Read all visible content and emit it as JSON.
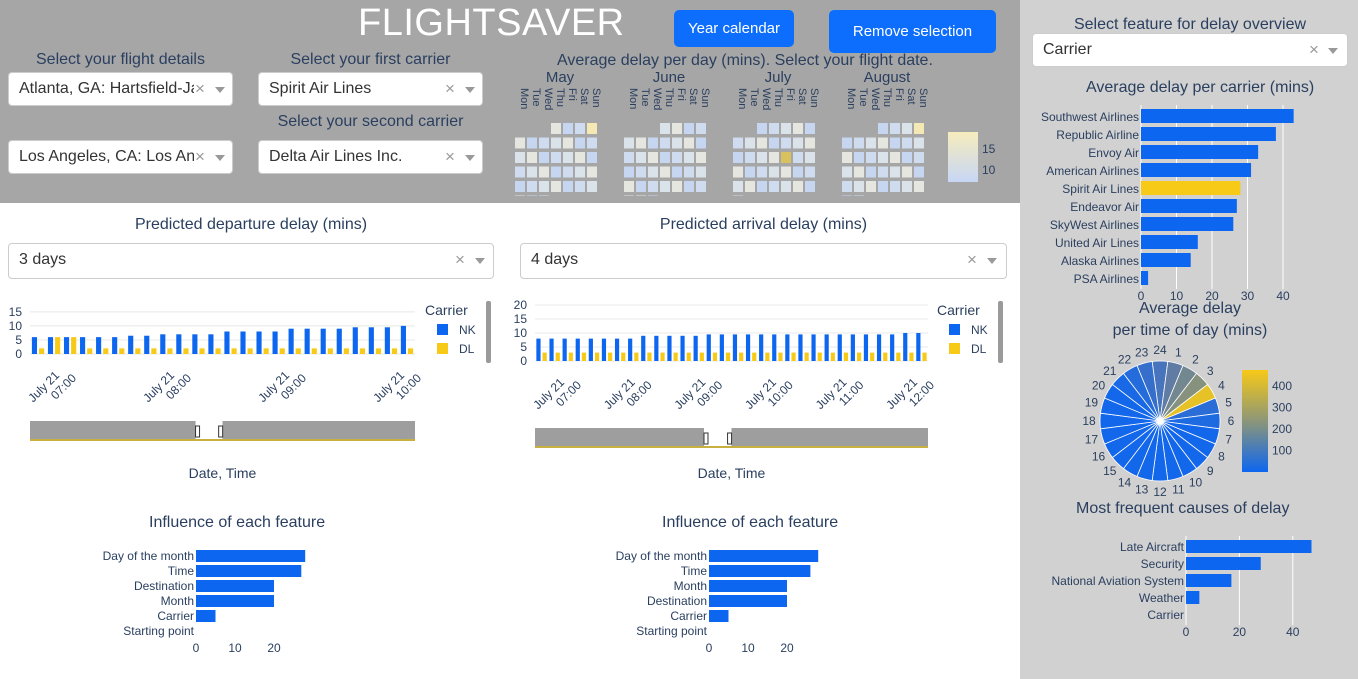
{
  "app": {
    "title": "FLIGHTSAVER"
  },
  "buttons": {
    "year_calendar": "Year calendar",
    "remove_selection": "Remove selection"
  },
  "colors": {
    "blue": "#0d66f0",
    "yellow": "#f7ca18",
    "band": "#a6a6a6",
    "right_panel": "#d1d1d1"
  },
  "flight": {
    "details_label": "Select your flight details",
    "origin_value": "Atlanta, GA: Hartsfield-Ja…",
    "destination_value": "Los Angeles, CA: Los Ang…",
    "first_carrier_label": "Select your first carrier",
    "first_carrier_value": "Spirit Air Lines",
    "second_carrier_label": "Select your second carrier",
    "second_carrier_value": "Delta Air Lines Inc."
  },
  "calendar": {
    "title": "Average delay per day (mins). Select your flight date.",
    "months": [
      "May",
      "June",
      "July",
      "August"
    ],
    "weekdays": [
      "Mon",
      "Tue",
      "Wed",
      "Thu",
      "Fri",
      "Sat",
      "Sun"
    ],
    "colorbar_ticks": [
      "15",
      "10"
    ]
  },
  "departure": {
    "title": "Predicted departure delay (mins)",
    "window_value": "3 days",
    "xaxis_title": "Date, Time",
    "legend_title": "Carrier",
    "legend": [
      "NK",
      "DL"
    ],
    "yticks": [
      "15",
      "10",
      "5",
      "0"
    ],
    "xticks": [
      "July 21\n07:00",
      "July 21\n08:00",
      "July 21\n09:00",
      "July 21\n10:00"
    ]
  },
  "arrival": {
    "title": "Predicted arrival delay (mins)",
    "window_value": "4 days",
    "xaxis_title": "Date, Time",
    "legend_title": "Carrier",
    "legend": [
      "NK",
      "DL"
    ],
    "yticks": [
      "20",
      "15",
      "10",
      "5",
      "0"
    ],
    "xticks": [
      "July 21\n07:00",
      "July 21\n08:00",
      "July 21\n09:00",
      "July 21\n10:00",
      "July 21\n11:00",
      "July 21\n12:00"
    ]
  },
  "influence_left": {
    "title": "Influence of each feature",
    "xticks": [
      "0",
      "10",
      "20"
    ]
  },
  "influence_right": {
    "title": "Influence of each feature",
    "xticks": [
      "0",
      "10",
      "20"
    ]
  },
  "overview": {
    "label": "Select feature for delay overview",
    "value": "Carrier",
    "carrier_title": "Average delay per carrier (mins)",
    "carrier_xticks": [
      "0",
      "10",
      "20",
      "30",
      "40"
    ],
    "tod_title_line1": "Average delay",
    "tod_title_line2": "per time of day (mins)",
    "tod_colorbar_ticks": [
      "400",
      "300",
      "200",
      "100"
    ],
    "causes_title": "Most frequent causes of delay",
    "causes_xticks": [
      "0",
      "20",
      "40"
    ]
  },
  "chart_data": [
    {
      "type": "bar",
      "id": "departure",
      "title": "Predicted departure delay (mins)",
      "xlabel": "Date, Time",
      "ylim": [
        0,
        17
      ],
      "series": [
        {
          "name": "NK",
          "values": [
            6,
            6,
            6,
            6,
            6,
            6,
            6.5,
            6.5,
            7,
            7,
            7,
            7,
            8,
            8,
            8,
            8,
            9,
            9,
            9,
            9,
            9.5,
            9.5,
            9.5,
            10
          ]
        },
        {
          "name": "DL",
          "values": [
            2,
            6,
            6,
            2,
            2,
            2,
            2,
            2,
            2,
            2,
            2,
            2,
            2,
            2,
            2,
            2,
            2,
            2,
            2,
            2,
            2,
            2,
            2,
            2
          ]
        }
      ]
    },
    {
      "type": "bar",
      "id": "arrival",
      "title": "Predicted arrival delay (mins)",
      "xlabel": "Date, Time",
      "ylim": [
        0,
        20
      ],
      "series": [
        {
          "name": "NK",
          "values": [
            8,
            8,
            8,
            8,
            8,
            8,
            8,
            8,
            9,
            9,
            9,
            9,
            9,
            9.5,
            9.5,
            9.5,
            9.5,
            9.5,
            9.5,
            9.5,
            9.5,
            9.5,
            9.5,
            9.5,
            9.5,
            9.5,
            9.5,
            9.5,
            10,
            10
          ]
        },
        {
          "name": "DL",
          "values": [
            3,
            3,
            3,
            3,
            3,
            3,
            3,
            3,
            3,
            3,
            3,
            3,
            3,
            3,
            3,
            3,
            3,
            3,
            3,
            3,
            3,
            3,
            3,
            3,
            3,
            3,
            3,
            3,
            3,
            3
          ]
        }
      ]
    },
    {
      "type": "bar",
      "id": "influence_left",
      "title": "Influence of each feature",
      "orientation": "horizontal",
      "categories": [
        "Day of the month",
        "Time",
        "Destination",
        "Month",
        "Carrier",
        "Starting point"
      ],
      "values": [
        28,
        27,
        20,
        20,
        5,
        0
      ]
    },
    {
      "type": "bar",
      "id": "influence_right",
      "title": "Influence of each feature",
      "orientation": "horizontal",
      "categories": [
        "Day of the month",
        "Time",
        "Month",
        "Destination",
        "Carrier",
        "Starting point"
      ],
      "values": [
        28,
        26,
        20,
        20,
        5,
        0
      ]
    },
    {
      "type": "bar",
      "id": "carrier_delay",
      "title": "Average delay per carrier (mins)",
      "orientation": "horizontal",
      "categories": [
        "Southwest Airlines",
        "Republic Airline",
        "Envoy Air",
        "American Airlines",
        "Spirit Air Lines",
        "Endeavor Air",
        "SkyWest Airlines",
        "United Air Lines",
        "Alaska Airlines",
        "PSA Airlines"
      ],
      "values": [
        43,
        38,
        33,
        31,
        28,
        27,
        26,
        16,
        14,
        2
      ],
      "highlight": "Spirit Air Lines"
    },
    {
      "type": "pie",
      "id": "time_of_day",
      "title": "Average delay per time of day (mins)",
      "categories": [
        "24",
        "1",
        "2",
        "3",
        "4",
        "5",
        "6",
        "7",
        "8",
        "9",
        "10",
        "11",
        "12",
        "13",
        "14",
        "15",
        "16",
        "17",
        "18",
        "19",
        "20",
        "21",
        "22",
        "23"
      ],
      "values": [
        150,
        200,
        250,
        300,
        430,
        100,
        80,
        60,
        60,
        60,
        60,
        60,
        60,
        60,
        60,
        60,
        60,
        60,
        60,
        60,
        60,
        70,
        90,
        120
      ]
    },
    {
      "type": "bar",
      "id": "causes",
      "title": "Most frequent causes of delay",
      "orientation": "horizontal",
      "categories": [
        "Late Aircraft",
        "Security",
        "National Aviation System",
        "Weather",
        "Carrier"
      ],
      "values": [
        47,
        28,
        17,
        5,
        0
      ]
    }
  ]
}
